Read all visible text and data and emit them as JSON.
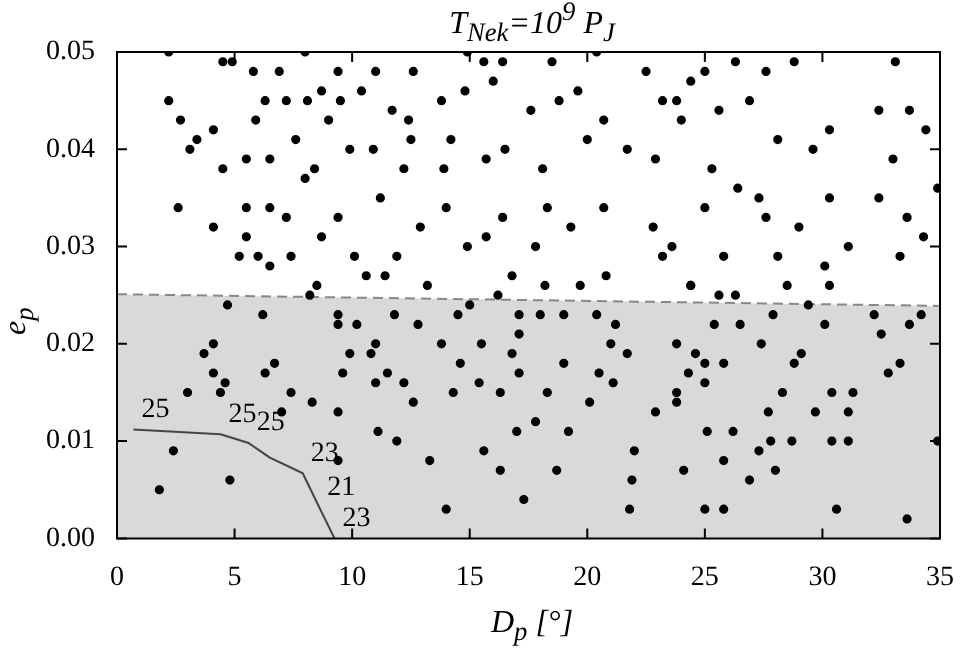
{
  "chart_data": {
    "type": "scatter",
    "title": "T$_{Nek}$=10$^{9}$ P$_{J}$",
    "xlabel": "D$_{p}$ [°]",
    "ylabel": "e$_{p}$",
    "xlim": [
      0,
      35
    ],
    "ylim": [
      0,
      0.05
    ],
    "xticks": [
      0,
      5,
      10,
      15,
      20,
      25,
      30,
      35
    ],
    "yticks": [
      {
        "value": 0,
        "label": "0.00"
      },
      {
        "value": 0.01,
        "label": "0.01"
      },
      {
        "value": 0.02,
        "label": "0.02"
      },
      {
        "value": 0.03,
        "label": "0.03"
      },
      {
        "value": 0.04,
        "label": "0.04"
      },
      {
        "value": 0.05,
        "label": "0.05"
      }
    ],
    "grid": false,
    "series": [
      {
        "color": "#000000",
        "marker": "circle",
        "x": [
          2.2,
          2.2,
          2.7,
          3.4,
          3.1,
          4.1,
          2.6,
          4.1,
          4.5,
          4.9,
          5.8,
          4.5,
          5.5,
          5.9,
          6.3,
          6.5,
          6.5,
          5.5,
          5.5,
          6.0,
          5.2,
          6.5,
          6.9,
          7.2,
          8.0,
          7.6,
          8.1,
          8.0,
          8.4,
          8.7,
          8.7,
          9.0,
          9.4,
          9.5,
          9.4,
          9.9,
          10.1,
          10.4,
          11.0,
          10.9,
          11.2,
          11.4,
          7.4,
          7.2,
          12.6,
          11.7,
          12.4,
          12.5,
          12.2,
          13.9,
          14.2,
          13.8,
          14.9,
          15.6,
          14.8,
          16.4,
          16.0,
          16.5,
          15.7,
          17.6,
          18.5,
          18.8,
          19.6,
          20.4,
          20.0,
          20.7,
          21.7,
          22.5,
          23.2,
          22.9,
          18.1,
          18.3,
          20.7,
          14.0,
          16.4,
          19.3,
          12.9,
          15.7,
          22.8,
          14.9,
          17.8,
          11.9,
          16.8,
          20.8,
          23.2,
          24.4,
          25.0,
          26.3,
          27.6,
          28.8,
          33.1,
          23.8,
          25.6,
          26.9,
          24.0,
          28.1,
          29.6,
          30.3,
          32.4,
          33.7,
          34.4,
          33.0,
          34.9,
          25.3,
          26.4,
          27.3,
          25.0,
          30.3,
          32.4,
          27.6,
          29.0,
          33.6,
          23.6,
          31.1,
          34.3,
          25.8,
          28.1,
          33.3,
          30.1,
          24.4,
          1.8,
          2.4,
          3.0,
          3.7,
          4.1,
          4.1,
          4.4,
          4.6,
          4.7,
          4.8,
          6.2,
          6.3,
          6.7,
          7.0,
          7.4,
          8.3,
          8.2,
          8.5,
          9.4,
          9.4,
          9.4,
          9.4,
          9.6,
          9.9,
          10.2,
          10.8,
          11.0,
          11.0,
          11.1,
          10.6,
          13.2,
          11.8,
          12.8,
          13.8,
          14.5,
          15.0,
          14.6,
          15.5,
          16.2,
          16.8,
          17.1,
          17.1,
          18.0,
          18.2,
          19.0,
          19.7,
          20.4,
          21.2,
          21.0,
          21.7,
          21.1,
          11.5,
          12.2,
          12.6,
          15.4,
          14.3,
          16.3,
          17.1,
          18.3,
          19.0,
          20.1,
          20.5,
          17.8,
          11.9,
          17.0,
          19.2,
          22.9,
          13.3,
          15.6,
          16.3,
          18.7,
          17.3,
          22.0,
          21.9,
          21.8,
          14.0,
          24.4,
          26.3,
          28.5,
          30.3,
          25.6,
          25.4,
          26.5,
          27.9,
          29.4,
          30.1,
          32.2,
          32.5,
          33.7,
          34.2,
          23.8,
          24.6,
          25.0,
          24.3,
          25.8,
          27.4,
          28.8,
          29.1,
          25.0,
          23.8,
          23.8,
          28.3,
          27.7,
          29.7,
          30.4,
          31.3,
          31.1,
          32.8,
          33.3,
          25.1,
          26.2,
          27.8,
          28.7,
          30.4,
          31.1,
          34.9,
          27.3,
          25.8,
          24.1,
          26.9,
          28.0,
          25.0,
          25.8,
          30.6,
          33.6
        ],
        "values": [
          0.05,
          0.045,
          0.043,
          0.041,
          0.04,
          0.042,
          0.034,
          0.032,
          0.049,
          0.049,
          0.048,
          0.038,
          0.039,
          0.043,
          0.045,
          0.039,
          0.034,
          0.034,
          0.031,
          0.029,
          0.029,
          0.028,
          0.048,
          0.045,
          0.05,
          0.041,
          0.045,
          0.037,
          0.038,
          0.046,
          0.031,
          0.043,
          0.048,
          0.045,
          0.033,
          0.04,
          0.029,
          0.046,
          0.048,
          0.04,
          0.035,
          0.027,
          0.029,
          0.033,
          0.048,
          0.044,
          0.043,
          0.041,
          0.038,
          0.038,
          0.041,
          0.045,
          0.05,
          0.049,
          0.046,
          0.049,
          0.047,
          0.04,
          0.039,
          0.044,
          0.049,
          0.045,
          0.046,
          0.05,
          0.041,
          0.043,
          0.04,
          0.048,
          0.045,
          0.039,
          0.038,
          0.034,
          0.034,
          0.034,
          0.033,
          0.032,
          0.032,
          0.031,
          0.032,
          0.03,
          0.03,
          0.029,
          0.027,
          0.027,
          0.029,
          0.047,
          0.048,
          0.049,
          0.048,
          0.049,
          0.049,
          0.045,
          0.044,
          0.045,
          0.043,
          0.041,
          0.04,
          0.042,
          0.044,
          0.044,
          0.042,
          0.039,
          0.036,
          0.038,
          0.036,
          0.035,
          0.034,
          0.035,
          0.035,
          0.033,
          0.032,
          0.033,
          0.03,
          0.03,
          0.031,
          0.029,
          0.029,
          0.029,
          0.028,
          0.026,
          0.005,
          0.009,
          0.015,
          0.019,
          0.02,
          0.017,
          0.015,
          0.016,
          0.024,
          0.006,
          0.023,
          0.017,
          0.018,
          0.013,
          0.015,
          0.014,
          0.025,
          0.026,
          0.023,
          0.022,
          0.013,
          0.008,
          0.017,
          0.019,
          0.022,
          0.019,
          0.02,
          0.016,
          0.011,
          0.027,
          0.026,
          0.023,
          0.022,
          0.02,
          0.023,
          0.024,
          0.018,
          0.02,
          0.025,
          0.019,
          0.021,
          0.023,
          0.023,
          0.026,
          0.023,
          0.026,
          0.023,
          0.022,
          0.02,
          0.019,
          0.016,
          0.017,
          0.016,
          0.014,
          0.016,
          0.015,
          0.015,
          0.017,
          0.015,
          0.018,
          0.014,
          0.017,
          0.012,
          0.01,
          0.011,
          0.011,
          0.013,
          0.008,
          0.009,
          0.007,
          0.007,
          0.004,
          0.009,
          0.006,
          0.003,
          0.003,
          0.026,
          0.025,
          0.026,
          0.026,
          0.025,
          0.022,
          0.022,
          0.023,
          0.024,
          0.022,
          0.023,
          0.021,
          0.022,
          0.023,
          0.02,
          0.019,
          0.018,
          0.017,
          0.018,
          0.02,
          0.018,
          0.019,
          0.016,
          0.015,
          0.014,
          0.015,
          0.013,
          0.013,
          0.015,
          0.015,
          0.013,
          0.017,
          0.018,
          0.011,
          0.011,
          0.01,
          0.01,
          0.01,
          0.01,
          0.01,
          0.009,
          0.008,
          0.007,
          0.006,
          0.007,
          0.003,
          0.003,
          0.003,
          0.002
        ]
      },
      {
        "type": "line",
        "color": "#444444",
        "marker": "none",
        "line_style": "solid",
        "x": [
          0.7,
          4.4,
          5.6,
          6.5,
          7.9,
          8.6,
          9.25
        ],
        "values": [
          0.0112,
          0.0107,
          0.0098,
          0.0083,
          0.0067,
          0.0032,
          0
        ]
      },
      {
        "type": "area",
        "color": "#d9d9d9",
        "marker": "none",
        "line_style": "dashed",
        "x": [
          0,
          35
        ],
        "values": [
          0.0251,
          0.0239
        ]
      }
    ],
    "annotations": [
      {
        "text": "25",
        "x": 0.7,
        "y": 0.0112
      },
      {
        "text": "25",
        "x": 4.4,
        "y": 0.0107
      },
      {
        "text": "25",
        "x": 5.6,
        "y": 0.0098
      },
      {
        "text": "23",
        "x": 7.9,
        "y": 0.0067
      },
      {
        "text": "21",
        "x": 8.6,
        "y": 0.0032
      },
      {
        "text": "23",
        "x": 9.25,
        "y": 0
      }
    ]
  }
}
